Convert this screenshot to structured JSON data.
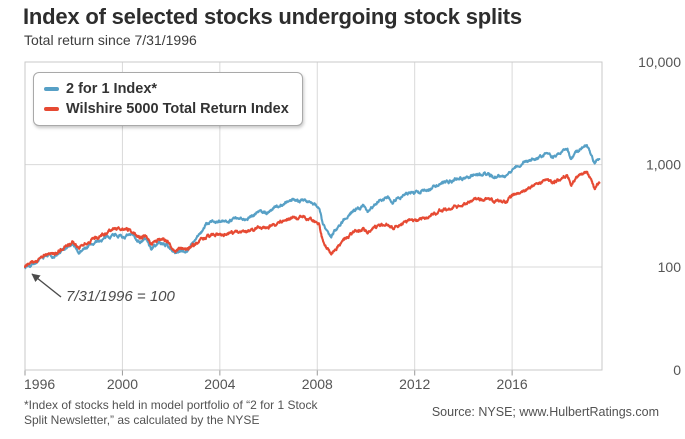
{
  "header": {
    "title": "Index of selected stocks undergoing stock splits",
    "subtitle": "Total return since 7/31/1996"
  },
  "legend": {
    "items": [
      {
        "label": "2 for 1 Index*",
        "color": "#57a0c6"
      },
      {
        "label": "Wilshire 5000 Total Return Index",
        "color": "#e64a33"
      }
    ]
  },
  "annotation": {
    "text": "7/31/1996 = 100",
    "points_to": {
      "date": "7/31/1996",
      "value": 100
    }
  },
  "footnote": {
    "line1": "*Index of stocks held in model portfolio of “2 for 1 Stock",
    "line2": "Split Newsletter,” as calculated by the NYSE"
  },
  "source": {
    "text": "Source: NYSE; www.HulbertRatings.com"
  },
  "chart_data": {
    "type": "line",
    "title": "Index of selected stocks undergoing stock splits",
    "subtitle": "Total return since 7/31/1996",
    "xlabel": "",
    "ylabel": "",
    "grid": true,
    "legend_position": "top-left",
    "y_axis": {
      "scale": "log",
      "side": "right",
      "ticks": [
        {
          "label": "10,000",
          "value": 10000
        },
        {
          "label": "1,000",
          "value": 1000
        },
        {
          "label": "100",
          "value": 100
        },
        {
          "label": "0",
          "value": 0
        }
      ]
    },
    "x_axis": {
      "tick_years": [
        1996,
        2000,
        2004,
        2008,
        2012,
        2016
      ],
      "tick_month_offset": 0.58,
      "range": [
        1996.58,
        2020.27
      ]
    },
    "base": {
      "date": "7/31/1996",
      "value": 100
    },
    "series": [
      {
        "name": "2 for 1 Index*",
        "color": "#57a0c6",
        "points": [
          [
            1996.58,
            100
          ],
          [
            1997.1,
            114
          ],
          [
            1997.55,
            132
          ],
          [
            1997.8,
            126
          ],
          [
            1998.2,
            150
          ],
          [
            1998.55,
            165
          ],
          [
            1998.8,
            138
          ],
          [
            1999.2,
            162
          ],
          [
            1999.6,
            178
          ],
          [
            2000.0,
            196
          ],
          [
            2000.25,
            212
          ],
          [
            2000.6,
            195
          ],
          [
            2000.95,
            205
          ],
          [
            2001.3,
            178
          ],
          [
            2001.55,
            188
          ],
          [
            2001.75,
            152
          ],
          [
            2002.1,
            172
          ],
          [
            2002.4,
            165
          ],
          [
            2002.75,
            136
          ],
          [
            2003.0,
            148
          ],
          [
            2003.2,
            143
          ],
          [
            2003.6,
            185
          ],
          [
            2004.0,
            255
          ],
          [
            2004.25,
            282
          ],
          [
            2004.6,
            268
          ],
          [
            2004.9,
            288
          ],
          [
            2005.2,
            298
          ],
          [
            2005.5,
            288
          ],
          [
            2005.9,
            320
          ],
          [
            2006.2,
            352
          ],
          [
            2006.5,
            338
          ],
          [
            2006.9,
            385
          ],
          [
            2007.3,
            425
          ],
          [
            2007.6,
            462
          ],
          [
            2007.8,
            442
          ],
          [
            2008.0,
            465
          ],
          [
            2008.35,
            420
          ],
          [
            2008.65,
            385
          ],
          [
            2008.8,
            265
          ],
          [
            2008.95,
            225
          ],
          [
            2009.15,
            198
          ],
          [
            2009.35,
            235
          ],
          [
            2009.7,
            300
          ],
          [
            2010.1,
            355
          ],
          [
            2010.45,
            392
          ],
          [
            2010.65,
            355
          ],
          [
            2011.1,
            440
          ],
          [
            2011.45,
            495
          ],
          [
            2011.7,
            432
          ],
          [
            2011.85,
            465
          ],
          [
            2012.1,
            505
          ],
          [
            2012.45,
            538
          ],
          [
            2012.75,
            528
          ],
          [
            2013.1,
            578
          ],
          [
            2013.6,
            638
          ],
          [
            2014.1,
            698
          ],
          [
            2014.6,
            748
          ],
          [
            2015.1,
            798
          ],
          [
            2015.55,
            828
          ],
          [
            2015.85,
            745
          ],
          [
            2016.1,
            788
          ],
          [
            2016.25,
            758
          ],
          [
            2016.6,
            900
          ],
          [
            2017.1,
            1060
          ],
          [
            2017.6,
            1160
          ],
          [
            2018.05,
            1280
          ],
          [
            2018.2,
            1160
          ],
          [
            2018.6,
            1320
          ],
          [
            2018.85,
            1430
          ],
          [
            2019.0,
            1135
          ],
          [
            2019.2,
            1310
          ],
          [
            2019.45,
            1470
          ],
          [
            2019.65,
            1565
          ],
          [
            2019.8,
            1280
          ],
          [
            2019.98,
            1045
          ],
          [
            2020.1,
            1135
          ],
          [
            2020.18,
            1165
          ]
        ]
      },
      {
        "name": "Wilshire 5000 Total Return Index",
        "color": "#e64a33",
        "points": [
          [
            1996.58,
            100
          ],
          [
            1997.1,
            117
          ],
          [
            1997.55,
            140
          ],
          [
            1997.8,
            133
          ],
          [
            1998.2,
            158
          ],
          [
            1998.55,
            178
          ],
          [
            1998.8,
            152
          ],
          [
            1999.2,
            180
          ],
          [
            1999.6,
            196
          ],
          [
            2000.0,
            218
          ],
          [
            2000.25,
            235
          ],
          [
            2000.7,
            240
          ],
          [
            2000.95,
            225
          ],
          [
            2001.3,
            196
          ],
          [
            2001.55,
            206
          ],
          [
            2001.75,
            168
          ],
          [
            2002.1,
            188
          ],
          [
            2002.4,
            178
          ],
          [
            2002.75,
            140
          ],
          [
            2003.0,
            152
          ],
          [
            2003.2,
            146
          ],
          [
            2003.6,
            172
          ],
          [
            2004.0,
            196
          ],
          [
            2004.25,
            208
          ],
          [
            2004.6,
            202
          ],
          [
            2004.9,
            212
          ],
          [
            2005.2,
            220
          ],
          [
            2005.5,
            215
          ],
          [
            2005.9,
            230
          ],
          [
            2006.2,
            246
          ],
          [
            2006.5,
            240
          ],
          [
            2006.9,
            262
          ],
          [
            2007.3,
            288
          ],
          [
            2007.6,
            308
          ],
          [
            2007.8,
            296
          ],
          [
            2008.0,
            312
          ],
          [
            2008.35,
            285
          ],
          [
            2008.65,
            262
          ],
          [
            2008.8,
            182
          ],
          [
            2008.95,
            155
          ],
          [
            2009.15,
            132
          ],
          [
            2009.35,
            152
          ],
          [
            2009.7,
            188
          ],
          [
            2010.1,
            218
          ],
          [
            2010.45,
            236
          ],
          [
            2010.65,
            215
          ],
          [
            2011.1,
            252
          ],
          [
            2011.45,
            272
          ],
          [
            2011.7,
            238
          ],
          [
            2011.85,
            252
          ],
          [
            2012.1,
            272
          ],
          [
            2012.45,
            288
          ],
          [
            2012.75,
            282
          ],
          [
            2013.1,
            312
          ],
          [
            2013.6,
            348
          ],
          [
            2014.1,
            382
          ],
          [
            2014.6,
            408
          ],
          [
            2015.1,
            452
          ],
          [
            2015.55,
            465
          ],
          [
            2015.85,
            425
          ],
          [
            2016.1,
            448
          ],
          [
            2016.25,
            432
          ],
          [
            2016.6,
            500
          ],
          [
            2017.1,
            560
          ],
          [
            2017.6,
            660
          ],
          [
            2018.05,
            720
          ],
          [
            2018.2,
            668
          ],
          [
            2018.6,
            740
          ],
          [
            2018.85,
            790
          ],
          [
            2019.0,
            645
          ],
          [
            2019.2,
            730
          ],
          [
            2019.45,
            790
          ],
          [
            2019.65,
            845
          ],
          [
            2019.8,
            700
          ],
          [
            2019.98,
            578
          ],
          [
            2020.1,
            642
          ],
          [
            2020.18,
            662
          ]
        ]
      }
    ],
    "colors": {
      "grid": "#d9d9d9",
      "border": "#c9c9c9",
      "tick": "#9a9a9a",
      "label": "#555555",
      "arrow": "#4b4b4b"
    }
  }
}
